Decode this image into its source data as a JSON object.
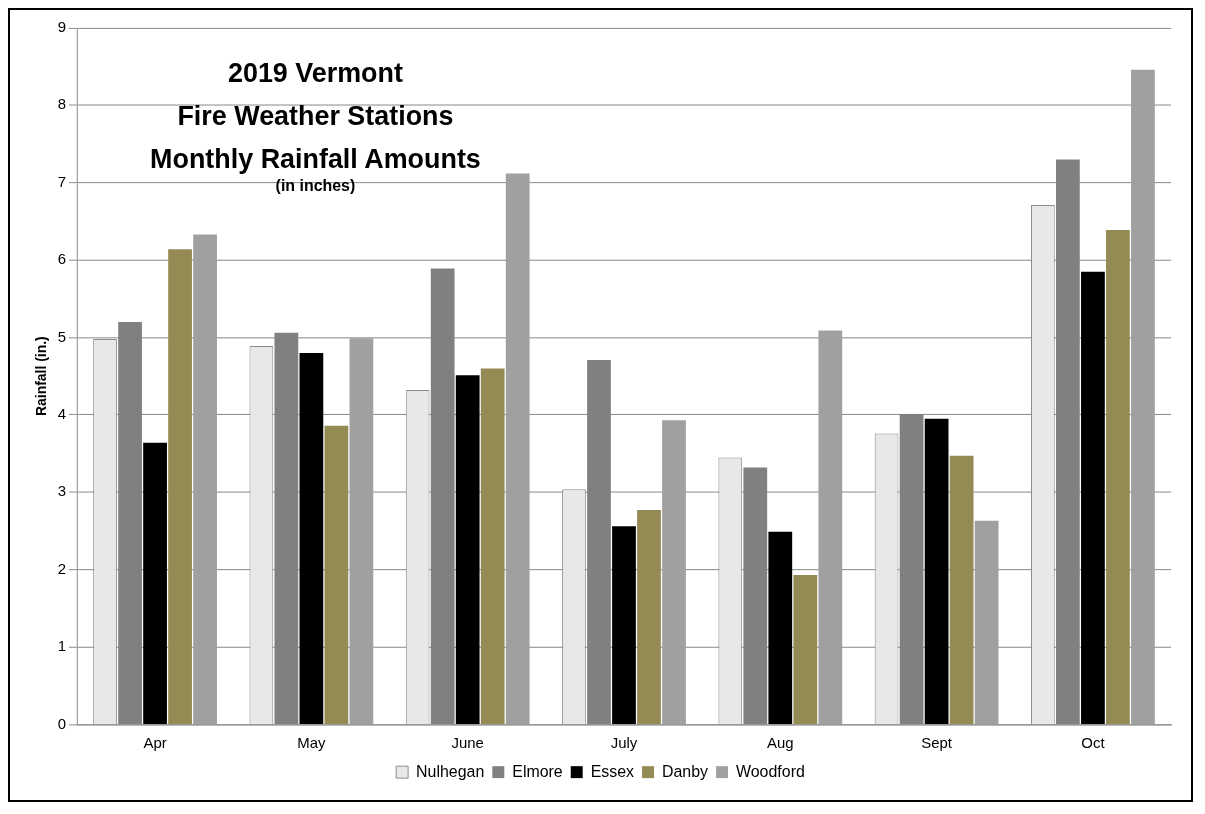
{
  "chart_data": {
    "type": "bar",
    "title": "2019 Vermont\nFire Weather Stations\nMonthly Rainfall Amounts",
    "subtitle": "(in inches)",
    "ylabel": "Rainfall (in.)",
    "categories": [
      "Apr",
      "May",
      "June",
      "July",
      "Aug",
      "Sept",
      "Oct"
    ],
    "series": [
      {
        "name": "Nulhegan",
        "color": "#e8e8e8",
        "values": [
          4.98,
          4.89,
          4.32,
          3.04,
          3.45,
          3.76,
          6.71
        ]
      },
      {
        "name": "Elmore",
        "color": "#808080",
        "values": [
          5.2,
          5.06,
          5.89,
          4.71,
          3.32,
          4.01,
          7.3
        ]
      },
      {
        "name": "Essex",
        "color": "#000000",
        "values": [
          3.64,
          4.8,
          4.51,
          2.56,
          2.49,
          3.95,
          5.85
        ]
      },
      {
        "name": "Danby",
        "color": "#948a54",
        "values": [
          6.14,
          3.86,
          4.6,
          2.77,
          1.93,
          3.47,
          6.39
        ]
      },
      {
        "name": "Woodford",
        "color": "#a0a0a0",
        "values": [
          6.33,
          4.99,
          7.12,
          3.93,
          5.09,
          2.63,
          8.46
        ]
      }
    ],
    "ylim": [
      0,
      9
    ],
    "yticks": [
      0,
      1,
      2,
      3,
      4,
      5,
      6,
      7,
      8,
      9
    ],
    "grid": "y",
    "legend": "bottom"
  }
}
